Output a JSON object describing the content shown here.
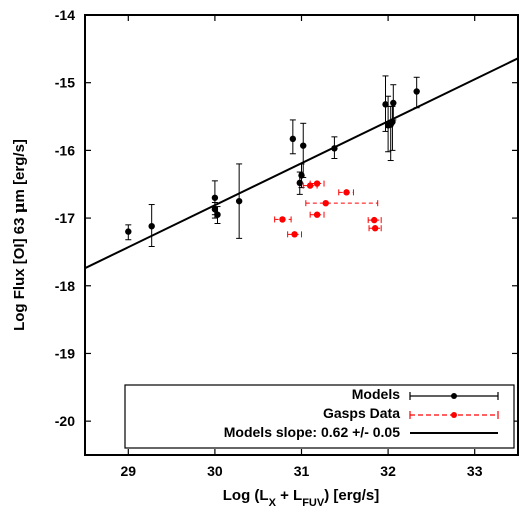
{
  "chart_data": {
    "type": "scatter",
    "xlabel": {
      "main": "Log (L",
      "sub1": "X",
      "mid": " + L",
      "sub2": "FUV",
      "end": ") [erg/s]"
    },
    "ylabel": {
      "before": "Log Flux [OI] 63 ",
      "mu": "μ",
      "after": "m [erg/s]"
    },
    "xlim": [
      28.5,
      33.5
    ],
    "ylim": [
      -20.5,
      -14
    ],
    "xticks": [
      29,
      30,
      31,
      32,
      33
    ],
    "yticks": [
      -14,
      -15,
      -16,
      -17,
      -18,
      -19,
      -20
    ],
    "xtick_labels": [
      "29",
      "30",
      "31",
      "32",
      "33"
    ],
    "ytick_labels": [
      "-14",
      "-15",
      "-16",
      "-17",
      "-18",
      "-19",
      "-20"
    ],
    "grid": false,
    "legend_position": "bottom-right",
    "series": [
      {
        "name": "Models",
        "color": "#000000",
        "marker": "circle",
        "errorbars": "vertical-solid",
        "points": [
          {
            "x": 29.0,
            "y": -17.2,
            "ylo": -17.32,
            "yhi": -17.1
          },
          {
            "x": 29.27,
            "y": -17.12,
            "ylo": -17.42,
            "yhi": -16.8
          },
          {
            "x": 30.0,
            "y": -16.7,
            "ylo": -16.95,
            "yhi": -16.45
          },
          {
            "x": 30.0,
            "y": -16.87,
            "ylo": -17.0,
            "yhi": -16.77
          },
          {
            "x": 30.03,
            "y": -16.95,
            "ylo": -17.08,
            "yhi": -16.83
          },
          {
            "x": 30.28,
            "y": -16.75,
            "ylo": -17.3,
            "yhi": -16.2
          },
          {
            "x": 30.9,
            "y": -15.83,
            "ylo": -16.05,
            "yhi": -15.55
          },
          {
            "x": 30.98,
            "y": -16.48,
            "ylo": -16.65,
            "yhi": -16.32
          },
          {
            "x": 31.0,
            "y": -16.37,
            "ylo": -16.55,
            "yhi": -16.2
          },
          {
            "x": 31.02,
            "y": -15.93,
            "ylo": -16.4,
            "yhi": -15.6
          },
          {
            "x": 31.38,
            "y": -15.97,
            "ylo": -16.12,
            "yhi": -15.8
          },
          {
            "x": 31.97,
            "y": -15.32,
            "ylo": -15.72,
            "yhi": -14.9
          },
          {
            "x": 32.0,
            "y": -15.63,
            "ylo": -16.02,
            "yhi": -15.2
          },
          {
            "x": 32.03,
            "y": -15.62,
            "ylo": -16.15,
            "yhi": -15.35
          },
          {
            "x": 32.06,
            "y": -15.3,
            "ylo": -15.55,
            "yhi": -15.03
          },
          {
            "x": 32.05,
            "y": -15.58,
            "ylo": -16.0,
            "yhi": -15.35
          },
          {
            "x": 32.33,
            "y": -15.13,
            "ylo": -15.37,
            "yhi": -14.92
          }
        ]
      },
      {
        "name": "Gasps Data",
        "color": "#ff0000",
        "marker": "circle",
        "errorbars": "horizontal-dashed",
        "points": [
          {
            "x": 30.78,
            "y": -17.02,
            "xlo": 30.69,
            "xhi": 30.88
          },
          {
            "x": 30.92,
            "y": -17.24,
            "xlo": 30.84,
            "xhi": 31.0
          },
          {
            "x": 31.1,
            "y": -16.52,
            "xlo": 31.02,
            "xhi": 31.18
          },
          {
            "x": 31.18,
            "y": -16.49,
            "xlo": 31.1,
            "xhi": 31.26
          },
          {
            "x": 31.18,
            "y": -16.95,
            "xlo": 31.1,
            "xhi": 31.26
          },
          {
            "x": 31.28,
            "y": -16.78,
            "xlo": 31.05,
            "xhi": 31.88
          },
          {
            "x": 31.52,
            "y": -16.62,
            "xlo": 31.43,
            "xhi": 31.6
          },
          {
            "x": 31.84,
            "y": -17.03,
            "xlo": 31.77,
            "xhi": 31.92
          },
          {
            "x": 31.85,
            "y": -17.15,
            "xlo": 31.78,
            "xhi": 31.92
          }
        ]
      },
      {
        "name": "Models slope: 0.62 +/- 0.05",
        "color": "#000000",
        "type": "line",
        "x": [
          28.5,
          33.5
        ],
        "y": [
          -17.74,
          -14.64
        ]
      }
    ]
  }
}
